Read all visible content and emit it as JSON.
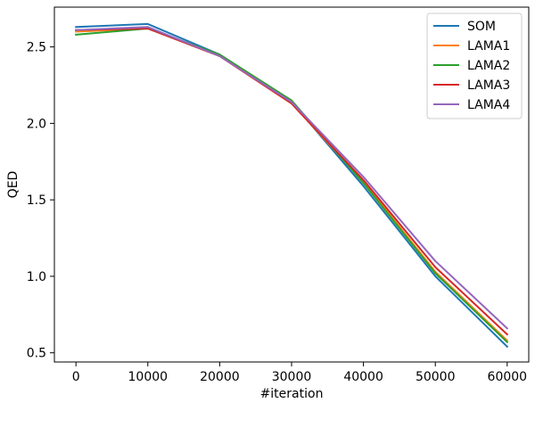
{
  "chart_data": {
    "type": "line",
    "title": "",
    "xlabel": "#iteration",
    "ylabel": "QED",
    "x": [
      0,
      10000,
      20000,
      30000,
      40000,
      50000,
      60000
    ],
    "xticks": [
      "0",
      "10000",
      "20000",
      "30000",
      "40000",
      "50000",
      "60000"
    ],
    "yticks": [
      "0.5",
      "1.0",
      "1.5",
      "2.0",
      "2.5"
    ],
    "xlim": [
      -3000,
      63000
    ],
    "ylim": [
      0.44,
      2.76
    ],
    "grid": false,
    "legend_position": "top-right",
    "series": [
      {
        "name": "SOM",
        "color": "#1f77b4",
        "values": [
          2.63,
          2.65,
          2.45,
          2.14,
          1.59,
          1.0,
          0.54
        ]
      },
      {
        "name": "LAMA1",
        "color": "#ff7f0e",
        "values": [
          2.6,
          2.62,
          2.44,
          2.13,
          1.62,
          1.03,
          0.58
        ]
      },
      {
        "name": "LAMA2",
        "color": "#2ca02c",
        "values": [
          2.58,
          2.62,
          2.45,
          2.15,
          1.61,
          1.02,
          0.57
        ]
      },
      {
        "name": "LAMA3",
        "color": "#d62728",
        "values": [
          2.61,
          2.62,
          2.44,
          2.13,
          1.63,
          1.06,
          0.62
        ]
      },
      {
        "name": "LAMA4",
        "color": "#9467bd",
        "values": [
          2.61,
          2.63,
          2.44,
          2.14,
          1.65,
          1.1,
          0.66
        ]
      }
    ]
  }
}
